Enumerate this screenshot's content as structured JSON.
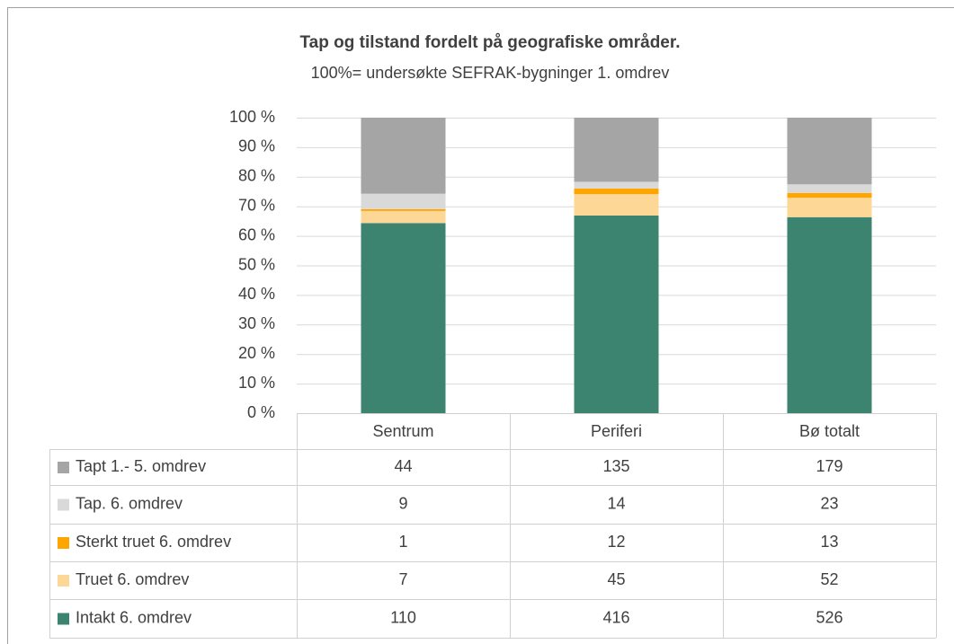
{
  "chart_data": {
    "type": "bar",
    "stacking": "percent",
    "title": "Tap og tilstand fordelt på geografiske områder.",
    "subtitle": "100%= undersøkte SEFRAK-bygninger 1. omdrev",
    "categories": [
      "Sentrum",
      "Periferi",
      "Bø totalt"
    ],
    "series": [
      {
        "name": "Tapt 1.- 5. omdrev",
        "color": "#a5a5a5",
        "values": [
          44,
          135,
          179
        ]
      },
      {
        "name": "Tap. 6. omdrev",
        "color": "#d9d9d9",
        "values": [
          9,
          14,
          23
        ]
      },
      {
        "name": "Sterkt truet 6. omdrev",
        "color": "#ffa500",
        "values": [
          1,
          12,
          13
        ]
      },
      {
        "name": "Truet 6. omdrev",
        "color": "#fdd796",
        "values": [
          7,
          45,
          52
        ]
      },
      {
        "name": "Intakt 6. omdrev",
        "color": "#3c8470",
        "values": [
          110,
          416,
          526
        ]
      }
    ],
    "ylim": [
      0,
      100
    ],
    "yticks": [
      {
        "value": 0,
        "label": "0 %"
      },
      {
        "value": 10,
        "label": "10 %"
      },
      {
        "value": 20,
        "label": "20 %"
      },
      {
        "value": 30,
        "label": "30 %"
      },
      {
        "value": 40,
        "label": "40 %"
      },
      {
        "value": 50,
        "label": "50 %"
      },
      {
        "value": 60,
        "label": "60 %"
      },
      {
        "value": 70,
        "label": "70 %"
      },
      {
        "value": 80,
        "label": "80 %"
      },
      {
        "value": 90,
        "label": "90 %"
      },
      {
        "value": 100,
        "label": "100 %"
      }
    ],
    "grid": true,
    "data_table": true
  }
}
